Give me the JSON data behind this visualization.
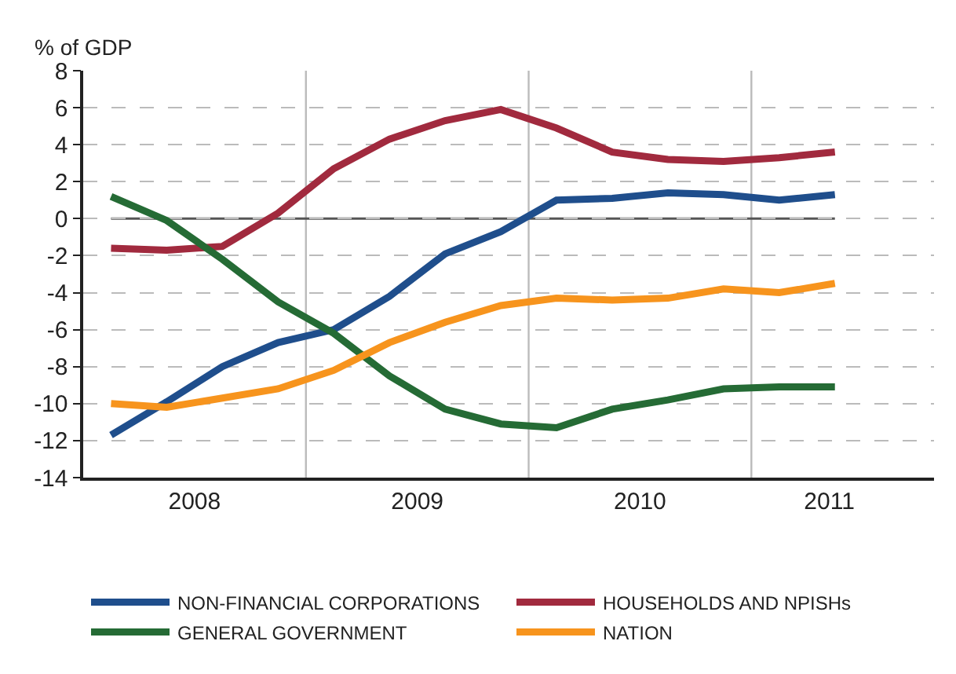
{
  "chart_data": {
    "type": "line",
    "ylabel": "% of GDP",
    "x": [
      2008.125,
      2008.375,
      2008.625,
      2008.875,
      2009.125,
      2009.375,
      2009.625,
      2009.875,
      2010.125,
      2010.375,
      2010.625,
      2010.875,
      2011.125,
      2011.375
    ],
    "series": [
      {
        "name": "NON-FINANCIAL CORPORATIONS",
        "color": "#1f4e8c",
        "values": [
          -11.7,
          -9.9,
          -8.0,
          -6.7,
          -6.0,
          -4.2,
          -1.9,
          -0.7,
          1.0,
          1.1,
          1.4,
          1.3,
          1.0,
          1.3
        ]
      },
      {
        "name": "HOUSEHOLDS AND NPISHs",
        "color": "#a12a3e",
        "values": [
          -1.6,
          -1.7,
          -1.5,
          0.3,
          2.7,
          4.3,
          5.3,
          5.9,
          4.9,
          3.6,
          3.2,
          3.1,
          3.3,
          3.6
        ]
      },
      {
        "name": "GENERAL GOVERNMENT",
        "color": "#256b35",
        "values": [
          1.2,
          -0.1,
          -2.2,
          -4.5,
          -6.2,
          -8.5,
          -10.3,
          -11.1,
          -11.3,
          -10.3,
          -9.8,
          -9.2,
          -9.1,
          -9.1
        ]
      },
      {
        "name": "NATION",
        "color": "#f7941d",
        "values": [
          -10.0,
          -10.2,
          -9.7,
          -9.2,
          -8.2,
          -6.7,
          -5.6,
          -4.7,
          -4.3,
          -4.4,
          -4.3,
          -3.8,
          -4.0,
          -3.5
        ]
      }
    ],
    "xlim": [
      2008.0,
      2011.82
    ],
    "xticks": [
      {
        "value": 2008.5,
        "label": "2008"
      },
      {
        "value": 2009.5,
        "label": "2009"
      },
      {
        "value": 2010.5,
        "label": "2010"
      },
      {
        "value": 2011.35,
        "label": "2011"
      }
    ],
    "ylim": [
      -14,
      8
    ],
    "yticks": [
      -14,
      -12,
      -10,
      -8,
      -6,
      -4,
      -2,
      0,
      2,
      4,
      6,
      8
    ],
    "ref_lines": [
      {
        "axis": "y",
        "value": 0,
        "color": "#555555"
      },
      {
        "axis": "x",
        "value": 2009,
        "color": "#bbbbbb"
      },
      {
        "axis": "x",
        "value": 2010,
        "color": "#bbbbbb"
      },
      {
        "axis": "x",
        "value": 2011,
        "color": "#bbbbbb"
      }
    ],
    "grid": "y",
    "legend": "bottom",
    "line_style": "solid",
    "marker": "none"
  }
}
